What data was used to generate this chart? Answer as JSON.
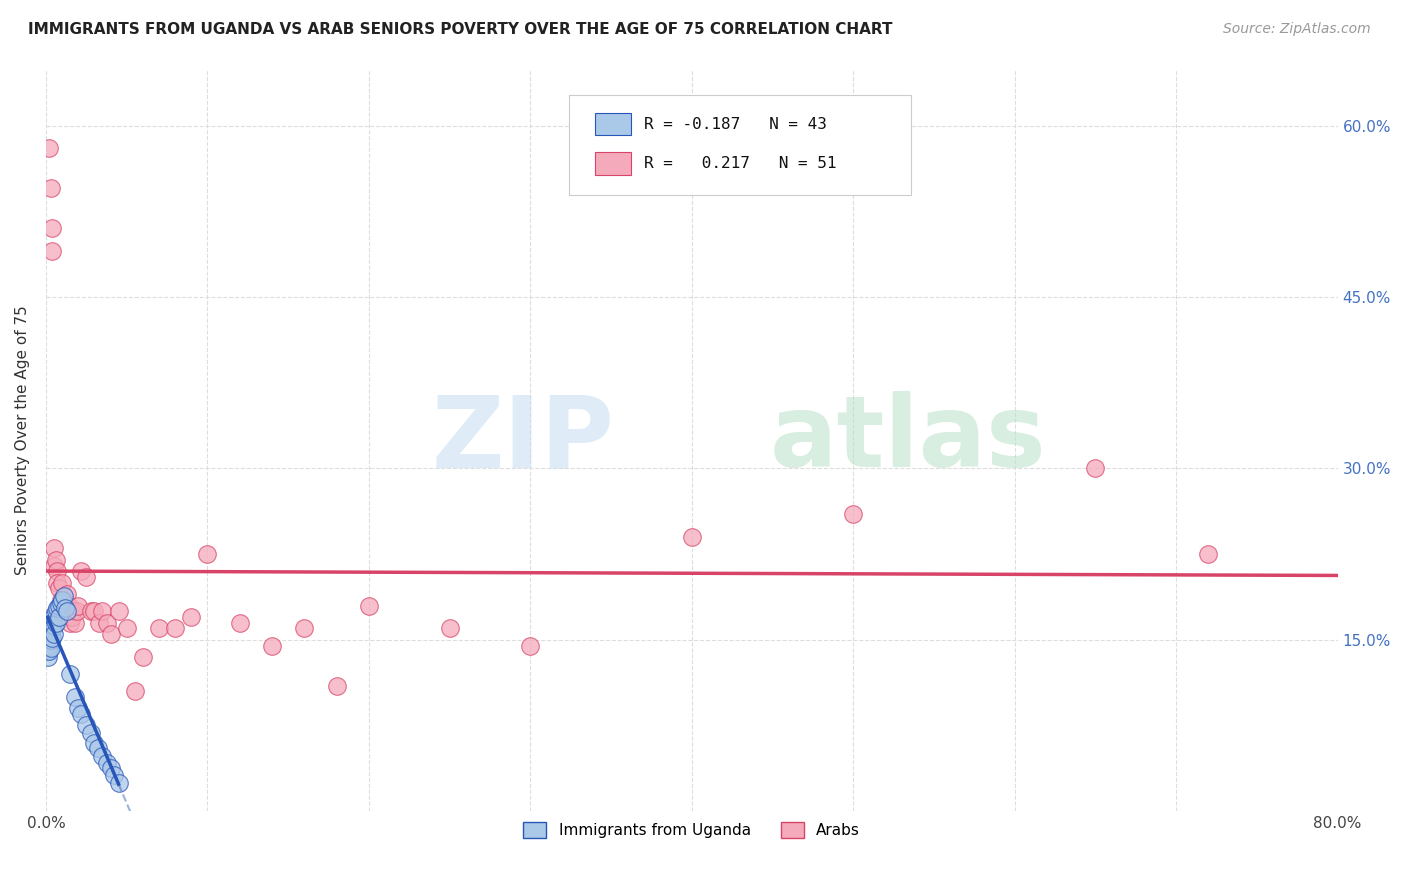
{
  "title": "IMMIGRANTS FROM UGANDA VS ARAB SENIORS POVERTY OVER THE AGE OF 75 CORRELATION CHART",
  "source": "Source: ZipAtlas.com",
  "ylabel": "Seniors Poverty Over the Age of 75",
  "xlim": [
    0.0,
    0.8
  ],
  "ylim": [
    0.0,
    0.65
  ],
  "xtick_positions": [
    0.0,
    0.1,
    0.2,
    0.3,
    0.4,
    0.5,
    0.6,
    0.7,
    0.8
  ],
  "xticklabels": [
    "0.0%",
    "",
    "",
    "",
    "",
    "",
    "",
    "",
    "80.0%"
  ],
  "ytick_positions": [
    0.0,
    0.15,
    0.3,
    0.45,
    0.6
  ],
  "ytick_labels_right": [
    "",
    "15.0%",
    "30.0%",
    "45.0%",
    "60.0%"
  ],
  "grid_color": "#dddddd",
  "background_color": "#ffffff",
  "uganda_color": "#aac8e8",
  "arab_color": "#f5aabb",
  "uganda_line_color": "#2855b8",
  "arab_line_color": "#d84468",
  "uganda_scatter_x": [
    0.001,
    0.001,
    0.001,
    0.001,
    0.001,
    0.002,
    0.002,
    0.002,
    0.002,
    0.002,
    0.003,
    0.003,
    0.003,
    0.003,
    0.004,
    0.004,
    0.004,
    0.005,
    0.005,
    0.005,
    0.006,
    0.006,
    0.007,
    0.008,
    0.008,
    0.009,
    0.01,
    0.011,
    0.012,
    0.013,
    0.015,
    0.018,
    0.02,
    0.022,
    0.025,
    0.028,
    0.03,
    0.032,
    0.035,
    0.038,
    0.04,
    0.042,
    0.045
  ],
  "uganda_scatter_y": [
    0.155,
    0.148,
    0.145,
    0.14,
    0.135,
    0.16,
    0.155,
    0.15,
    0.145,
    0.14,
    0.165,
    0.158,
    0.15,
    0.143,
    0.168,
    0.16,
    0.152,
    0.172,
    0.162,
    0.155,
    0.175,
    0.165,
    0.178,
    0.18,
    0.17,
    0.182,
    0.185,
    0.188,
    0.178,
    0.175,
    0.12,
    0.1,
    0.09,
    0.085,
    0.075,
    0.068,
    0.06,
    0.055,
    0.048,
    0.042,
    0.038,
    0.032,
    0.025
  ],
  "arab_scatter_x": [
    0.002,
    0.003,
    0.004,
    0.004,
    0.005,
    0.005,
    0.006,
    0.007,
    0.007,
    0.008,
    0.009,
    0.009,
    0.01,
    0.011,
    0.012,
    0.013,
    0.014,
    0.015,
    0.015,
    0.016,
    0.017,
    0.018,
    0.019,
    0.02,
    0.022,
    0.025,
    0.028,
    0.03,
    0.033,
    0.035,
    0.038,
    0.04,
    0.045,
    0.05,
    0.055,
    0.06,
    0.07,
    0.08,
    0.09,
    0.1,
    0.12,
    0.14,
    0.16,
    0.18,
    0.2,
    0.25,
    0.3,
    0.4,
    0.5,
    0.65,
    0.72
  ],
  "arab_scatter_y": [
    0.58,
    0.545,
    0.51,
    0.49,
    0.23,
    0.215,
    0.22,
    0.21,
    0.2,
    0.195,
    0.185,
    0.175,
    0.2,
    0.185,
    0.175,
    0.19,
    0.18,
    0.175,
    0.165,
    0.17,
    0.175,
    0.165,
    0.175,
    0.18,
    0.21,
    0.205,
    0.175,
    0.175,
    0.165,
    0.175,
    0.165,
    0.155,
    0.175,
    0.16,
    0.105,
    0.135,
    0.16,
    0.16,
    0.17,
    0.225,
    0.165,
    0.145,
    0.16,
    0.11,
    0.18,
    0.16,
    0.145,
    0.24,
    0.26,
    0.3,
    0.225
  ],
  "legend_R_uganda": "-0.187",
  "legend_N_uganda": "43",
  "legend_R_arab": "0.217",
  "legend_N_arab": "51"
}
